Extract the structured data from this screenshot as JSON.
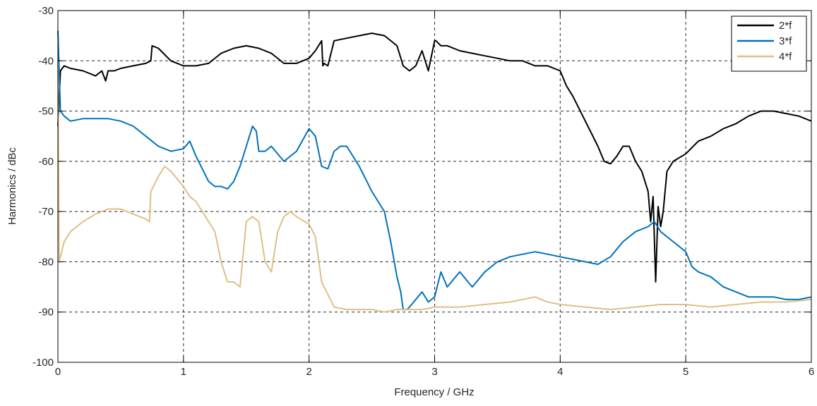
{
  "chart_data": {
    "type": "line",
    "title": "",
    "xlabel": "Frequency / GHz",
    "ylabel": "Harmonics / dBc",
    "xlim": [
      0,
      6
    ],
    "ylim": [
      -100,
      -30
    ],
    "xticks": [
      0,
      1,
      2,
      3,
      4,
      5,
      6
    ],
    "yticks": [
      -100,
      -90,
      -80,
      -70,
      -60,
      -50,
      -40,
      -30
    ],
    "xtick_labels": [
      "0",
      "1",
      "2",
      "3",
      "4",
      "5",
      "6"
    ],
    "ytick_labels": [
      "-100",
      "-90",
      "-80",
      "-70",
      "-60",
      "-50",
      "-40",
      "-30"
    ],
    "grid": true,
    "legend_position": "top-right",
    "series": [
      {
        "name": "2*f",
        "color": "#000000",
        "x": [
          0,
          0.02,
          0.05,
          0.1,
          0.2,
          0.3,
          0.35,
          0.38,
          0.4,
          0.45,
          0.5,
          0.6,
          0.7,
          0.74,
          0.75,
          0.8,
          0.9,
          1.0,
          1.05,
          1.1,
          1.2,
          1.3,
          1.4,
          1.5,
          1.6,
          1.7,
          1.8,
          1.9,
          2.0,
          2.05,
          2.1,
          2.11,
          2.12,
          2.15,
          2.2,
          2.3,
          2.4,
          2.5,
          2.6,
          2.7,
          2.75,
          2.8,
          2.85,
          2.9,
          2.95,
          3.0,
          3.01,
          3.05,
          3.1,
          3.2,
          3.3,
          3.4,
          3.5,
          3.6,
          3.7,
          3.8,
          3.9,
          4.0,
          4.05,
          4.1,
          4.2,
          4.3,
          4.35,
          4.4,
          4.45,
          4.5,
          4.55,
          4.6,
          4.65,
          4.7,
          4.72,
          4.74,
          4.76,
          4.78,
          4.8,
          4.82,
          4.85,
          4.9,
          5.0,
          5.1,
          5.2,
          5.3,
          5.4,
          5.5,
          5.6,
          5.7,
          5.8,
          5.9,
          6.0
        ],
        "y": [
          -53,
          -42,
          -41,
          -41.5,
          -42,
          -43,
          -42,
          -44,
          -42,
          -42,
          -41.5,
          -41,
          -40.5,
          -40,
          -37,
          -37.5,
          -40,
          -41,
          -41,
          -41,
          -40.5,
          -38.5,
          -37.5,
          -37,
          -37.5,
          -38.5,
          -40.5,
          -40.5,
          -39.5,
          -38,
          -36,
          -41,
          -40.5,
          -41,
          -36,
          -35.5,
          -35,
          -34.5,
          -35,
          -37,
          -41,
          -42,
          -41,
          -38,
          -42,
          -36,
          -36,
          -37,
          -37,
          -38,
          -38.5,
          -39,
          -39.5,
          -40,
          -40,
          -41,
          -41,
          -42,
          -45,
          -47,
          -52,
          -57,
          -60,
          -60.5,
          -59,
          -57,
          -57,
          -60,
          -62,
          -66,
          -72,
          -67,
          -84,
          -69,
          -73,
          -70,
          -62,
          -60,
          -58.5,
          -56,
          -55,
          -53.5,
          -52.5,
          -51,
          -50,
          -50,
          -50.5,
          -51,
          -52
        ]
      },
      {
        "name": "3*f",
        "color": "#0072bd",
        "x": [
          0,
          0.02,
          0.05,
          0.1,
          0.2,
          0.3,
          0.4,
          0.5,
          0.6,
          0.7,
          0.8,
          0.9,
          1.0,
          1.05,
          1.1,
          1.2,
          1.25,
          1.3,
          1.35,
          1.4,
          1.45,
          1.5,
          1.55,
          1.58,
          1.6,
          1.65,
          1.7,
          1.8,
          1.9,
          2.0,
          2.05,
          2.1,
          2.15,
          2.2,
          2.25,
          2.3,
          2.4,
          2.5,
          2.6,
          2.65,
          2.7,
          2.73,
          2.75,
          2.78,
          2.8,
          2.9,
          2.95,
          3.0,
          3.05,
          3.1,
          3.2,
          3.3,
          3.4,
          3.5,
          3.6,
          3.7,
          3.8,
          3.9,
          4.0,
          4.1,
          4.2,
          4.3,
          4.4,
          4.5,
          4.6,
          4.7,
          4.75,
          4.8,
          4.9,
          5.0,
          5.05,
          5.1,
          5.2,
          5.3,
          5.4,
          5.5,
          5.6,
          5.7,
          5.8,
          5.9,
          6.0
        ],
        "y": [
          -34,
          -50,
          -51,
          -52,
          -51.5,
          -51.5,
          -51.5,
          -52,
          -53,
          -55,
          -57,
          -58,
          -57.5,
          -56,
          -59,
          -64,
          -65,
          -65,
          -65.5,
          -64,
          -61,
          -57,
          -53,
          -54,
          -58,
          -58,
          -57,
          -60,
          -58,
          -53.5,
          -55,
          -61,
          -61.5,
          -58,
          -57,
          -57,
          -61,
          -66,
          -70,
          -76,
          -83,
          -86,
          -89.5,
          -89.5,
          -89,
          -86,
          -88,
          -87,
          -82,
          -85,
          -82,
          -85,
          -82,
          -80,
          -79,
          -78.5,
          -78,
          -78.5,
          -79,
          -79.5,
          -80,
          -80.5,
          -79,
          -76,
          -74,
          -73,
          -72,
          -74,
          -76,
          -78,
          -81,
          -82,
          -83,
          -85,
          -86,
          -87,
          -87,
          -87,
          -87.5,
          -87.5,
          -87
        ]
      },
      {
        "name": "4*f",
        "color": "#e0bf85",
        "x": [
          0,
          0.01,
          0.05,
          0.1,
          0.2,
          0.3,
          0.4,
          0.5,
          0.6,
          0.7,
          0.73,
          0.74,
          0.75,
          0.8,
          0.85,
          0.9,
          1.0,
          1.05,
          1.1,
          1.2,
          1.25,
          1.3,
          1.35,
          1.4,
          1.45,
          1.5,
          1.55,
          1.6,
          1.65,
          1.7,
          1.75,
          1.8,
          1.85,
          1.9,
          2.0,
          2.05,
          2.1,
          2.2,
          2.3,
          2.4,
          2.5,
          2.6,
          2.7,
          2.8,
          2.9,
          3.0,
          3.2,
          3.4,
          3.6,
          3.7,
          3.8,
          3.9,
          4.0,
          4.2,
          4.4,
          4.6,
          4.8,
          5.0,
          5.2,
          5.4,
          5.6,
          5.8,
          6.0
        ],
        "y": [
          -40,
          -80,
          -76,
          -74,
          -72,
          -70.5,
          -69.5,
          -69.5,
          -70.5,
          -71.5,
          -72,
          -66,
          -65.5,
          -63,
          -61,
          -62,
          -65,
          -67,
          -68,
          -72,
          -74,
          -80,
          -84,
          -84,
          -85,
          -72,
          -71,
          -72,
          -80,
          -82,
          -74,
          -71,
          -70,
          -71,
          -72.5,
          -75,
          -84,
          -89,
          -89.5,
          -89.5,
          -89.5,
          -90,
          -89.5,
          -89.5,
          -89.5,
          -89,
          -89,
          -88.5,
          -88,
          -87.5,
          -87,
          -88,
          -88.5,
          -89,
          -89.5,
          -89,
          -88.5,
          -88.5,
          -89,
          -88.5,
          -88,
          -88,
          -87.5
        ]
      }
    ]
  }
}
